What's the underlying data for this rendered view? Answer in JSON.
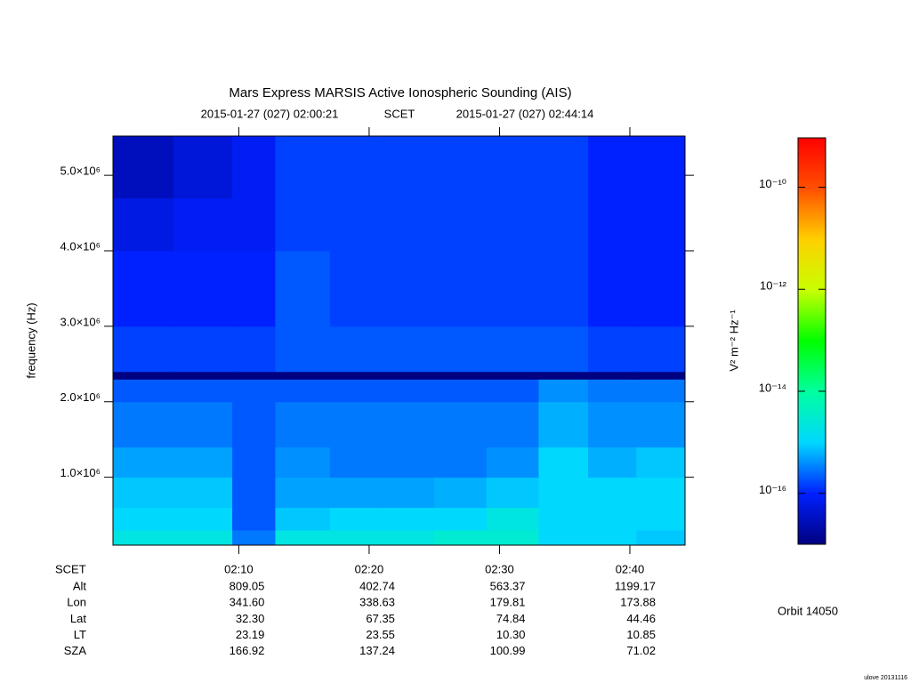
{
  "chart_data": {
    "type": "spectrogram",
    "title": "Mars Express MARSIS Active Ionospheric Sounding (AIS)",
    "subtitle": [
      "2015-01-27 (027) 02:00:21",
      "SCET",
      "2015-01-27 (027) 02:44:14"
    ],
    "ylabel": "frequency (Hz)",
    "xlim": [
      120.35,
      164.233
    ],
    "xticks": [
      {
        "value": 130,
        "label": "02:10"
      },
      {
        "value": 140,
        "label": "02:20"
      },
      {
        "value": 150,
        "label": "02:30"
      },
      {
        "value": 160,
        "label": "02:40"
      }
    ],
    "ylim": [
      100000,
      5520000
    ],
    "yticks": [
      {
        "value": 1000000,
        "label": "1.0×10⁶"
      },
      {
        "value": 2000000,
        "label": "2.0×10⁶"
      },
      {
        "value": 3000000,
        "label": "3.0×10⁶"
      },
      {
        "value": 4000000,
        "label": "4.0×10⁶"
      },
      {
        "value": 5000000,
        "label": "5.0×10⁶"
      }
    ],
    "x_edges": [
      120.35,
      125,
      129.5,
      132.8,
      137,
      141,
      145,
      149,
      153,
      156.8,
      160.5,
      164.233
    ],
    "y_edges": [
      100000,
      300000,
      600000,
      1000000,
      1400000,
      2000000,
      2300000,
      2400000,
      3000000,
      4000000,
      4700000,
      5520000
    ],
    "values": [
      [
        2e-15,
        2e-15,
        3e-16,
        2e-15,
        2e-15,
        2e-15,
        3e-15,
        3e-15,
        1e-15,
        1e-15,
        8e-16
      ],
      [
        1e-15,
        1e-15,
        2e-16,
        8e-16,
        1e-15,
        1e-15,
        1e-15,
        2e-15,
        1e-15,
        1e-15,
        1e-15
      ],
      [
        8e-16,
        8e-16,
        2e-16,
        5e-16,
        5e-16,
        5e-16,
        6e-16,
        8e-16,
        1e-15,
        1e-15,
        1e-15
      ],
      [
        5e-16,
        5e-16,
        2e-16,
        4e-16,
        3e-16,
        3e-16,
        3e-16,
        4e-16,
        1e-15,
        6e-16,
        8e-16
      ],
      [
        3e-16,
        3e-16,
        2e-16,
        3e-16,
        3e-16,
        3e-16,
        3e-16,
        3e-16,
        6e-16,
        4e-16,
        4e-16
      ],
      [
        2e-16,
        2e-16,
        2e-16,
        2e-16,
        2e-16,
        2e-16,
        2e-16,
        2e-16,
        4e-16,
        3e-16,
        3e-16
      ],
      [
        1e-17,
        1e-17,
        1e-17,
        1e-17,
        1e-17,
        1e-17,
        1e-17,
        1e-17,
        1e-17,
        1e-17,
        1e-17
      ],
      [
        1.5e-16,
        1.5e-16,
        1.5e-16,
        2e-16,
        2e-16,
        2e-16,
        2e-16,
        2e-16,
        2e-16,
        1.5e-16,
        1.5e-16
      ],
      [
        1e-16,
        1e-16,
        1e-16,
        2e-16,
        1.5e-16,
        1.5e-16,
        1.5e-16,
        1.5e-16,
        1.5e-16,
        1e-16,
        1e-16
      ],
      [
        6e-17,
        8e-17,
        8e-17,
        1.5e-16,
        1.5e-16,
        1.5e-16,
        1.5e-16,
        1.5e-16,
        1.5e-16,
        1e-16,
        1e-16
      ],
      [
        3e-17,
        5e-17,
        8e-17,
        1.5e-16,
        1.5e-16,
        1.5e-16,
        1.5e-16,
        1.5e-16,
        1.5e-16,
        1e-16,
        1e-16
      ]
    ],
    "colorbar": {
      "label": "V² m⁻² Hz⁻¹",
      "log": true,
      "zlim": [
        1e-17,
        9.3e-10
      ],
      "zticks": [
        {
          "value": 1e-10,
          "label": "10⁻¹⁰"
        },
        {
          "value": 1e-12,
          "label": "10⁻¹²"
        },
        {
          "value": 1e-14,
          "label": "10⁻¹⁴"
        },
        {
          "value": 1e-16,
          "label": "10⁻¹⁶"
        }
      ],
      "colormap": [
        "#000080",
        "#0020ff",
        "#00d8ff",
        "#00ffa0",
        "#00ff00",
        "#c8ff00",
        "#ffd000",
        "#ff5000",
        "#ff0000"
      ]
    },
    "ephemeris": {
      "time_label": "SCET",
      "rows": [
        {
          "label": "Alt",
          "values": [
            "809.05",
            "402.74",
            "563.37",
            "1199.17"
          ]
        },
        {
          "label": "Lon",
          "values": [
            "341.60",
            "338.63",
            "179.81",
            "173.88"
          ]
        },
        {
          "label": "Lat",
          "values": [
            "32.30",
            "67.35",
            "74.84",
            "44.46"
          ]
        },
        {
          "label": "LT",
          "values": [
            "23.19",
            "23.55",
            "10.30",
            "10.85"
          ]
        },
        {
          "label": "SZA",
          "values": [
            "166.92",
            "137.24",
            "100.99",
            "71.02"
          ]
        }
      ]
    },
    "orbit": "Orbit 14050",
    "footer": "ulove 20131116"
  }
}
